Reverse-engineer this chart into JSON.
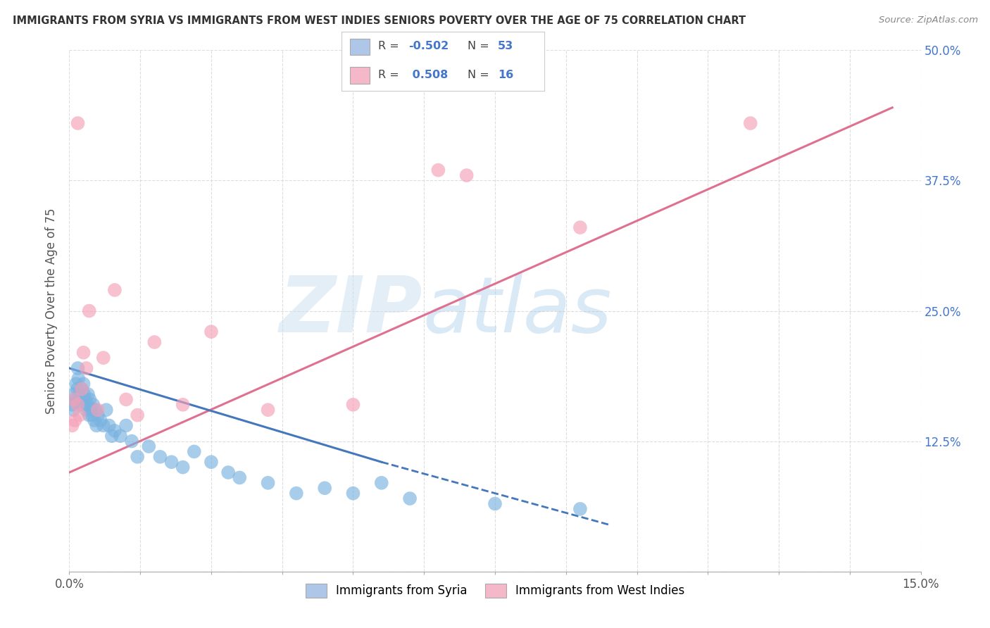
{
  "title": "IMMIGRANTS FROM SYRIA VS IMMIGRANTS FROM WEST INDIES SENIORS POVERTY OVER THE AGE OF 75 CORRELATION CHART",
  "source": "Source: ZipAtlas.com",
  "ylabel": "Seniors Poverty Over the Age of 75",
  "xlim": [
    0.0,
    15.0
  ],
  "ylim": [
    0.0,
    50.0
  ],
  "xticks": [
    0.0,
    1.25,
    2.5,
    3.75,
    5.0,
    6.25,
    7.5,
    8.75,
    10.0,
    11.25,
    12.5,
    13.75,
    15.0
  ],
  "yticks": [
    0,
    12.5,
    25.0,
    37.5,
    50.0
  ],
  "right_ytick_labels": [
    "",
    "12.5%",
    "25.0%",
    "37.5%",
    "50.0%"
  ],
  "watermark_zip": "ZIP",
  "watermark_atlas": "atlas",
  "legend_color1": "#aec6e8",
  "legend_color2": "#f4b8c8",
  "dot_color_syria": "#7ab3e0",
  "dot_color_wi": "#f4a0b8",
  "line_color_syria": "#4477bb",
  "line_color_wi": "#e07090",
  "background_color": "#ffffff",
  "title_color": "#333333",
  "axis_color": "#888888",
  "grid_color": "#dddddd",
  "syria_x": [
    0.05,
    0.07,
    0.08,
    0.1,
    0.12,
    0.14,
    0.15,
    0.16,
    0.18,
    0.2,
    0.22,
    0.24,
    0.25,
    0.26,
    0.28,
    0.3,
    0.32,
    0.33,
    0.35,
    0.36,
    0.38,
    0.4,
    0.42,
    0.44,
    0.46,
    0.48,
    0.5,
    0.55,
    0.6,
    0.65,
    0.7,
    0.75,
    0.8,
    0.9,
    1.0,
    1.1,
    1.2,
    1.4,
    1.6,
    1.8,
    2.0,
    2.2,
    2.5,
    2.8,
    3.0,
    3.5,
    4.0,
    4.5,
    5.0,
    5.5,
    6.0,
    7.5,
    9.0
  ],
  "syria_y": [
    16.0,
    15.5,
    17.0,
    16.5,
    18.0,
    17.5,
    19.5,
    18.5,
    17.0,
    16.5,
    17.5,
    16.0,
    18.0,
    17.0,
    16.5,
    15.5,
    16.0,
    17.0,
    15.0,
    16.5,
    15.5,
    15.0,
    16.0,
    14.5,
    15.5,
    14.0,
    15.0,
    14.5,
    14.0,
    15.5,
    14.0,
    13.0,
    13.5,
    13.0,
    14.0,
    12.5,
    11.0,
    12.0,
    11.0,
    10.5,
    10.0,
    11.5,
    10.5,
    9.5,
    9.0,
    8.5,
    7.5,
    8.0,
    7.5,
    8.5,
    7.0,
    6.5,
    6.0
  ],
  "wi_x": [
    0.05,
    0.08,
    0.1,
    0.15,
    0.18,
    0.22,
    0.25,
    0.3,
    0.35,
    0.5,
    0.6,
    0.8,
    1.0,
    1.2,
    1.5,
    2.0,
    2.5,
    3.5,
    5.0,
    7.0,
    9.0,
    12.0
  ],
  "wi_y": [
    14.0,
    16.5,
    14.5,
    16.0,
    15.0,
    17.5,
    21.0,
    19.5,
    25.0,
    15.5,
    20.5,
    27.0,
    16.5,
    15.0,
    22.0,
    16.0,
    23.0,
    15.5,
    16.0,
    38.0,
    33.0,
    43.0
  ],
  "wi_outlier1_x": 0.15,
  "wi_outlier1_y": 43.0,
  "wi_outlier2_x": 6.5,
  "wi_outlier2_y": 38.5,
  "trend_syria_x1": 0.0,
  "trend_syria_y1": 19.5,
  "trend_syria_x2": 5.5,
  "trend_syria_y2": 10.5,
  "trend_syria_dash_x1": 5.5,
  "trend_syria_dash_y1": 10.5,
  "trend_syria_dash_x2": 9.5,
  "trend_syria_dash_y2": 4.5,
  "trend_wi_x1": 0.0,
  "trend_wi_y1": 9.5,
  "trend_wi_x2": 14.5,
  "trend_wi_y2": 44.5,
  "label_syria": "Immigrants from Syria",
  "label_wi": "Immigrants from West Indies"
}
